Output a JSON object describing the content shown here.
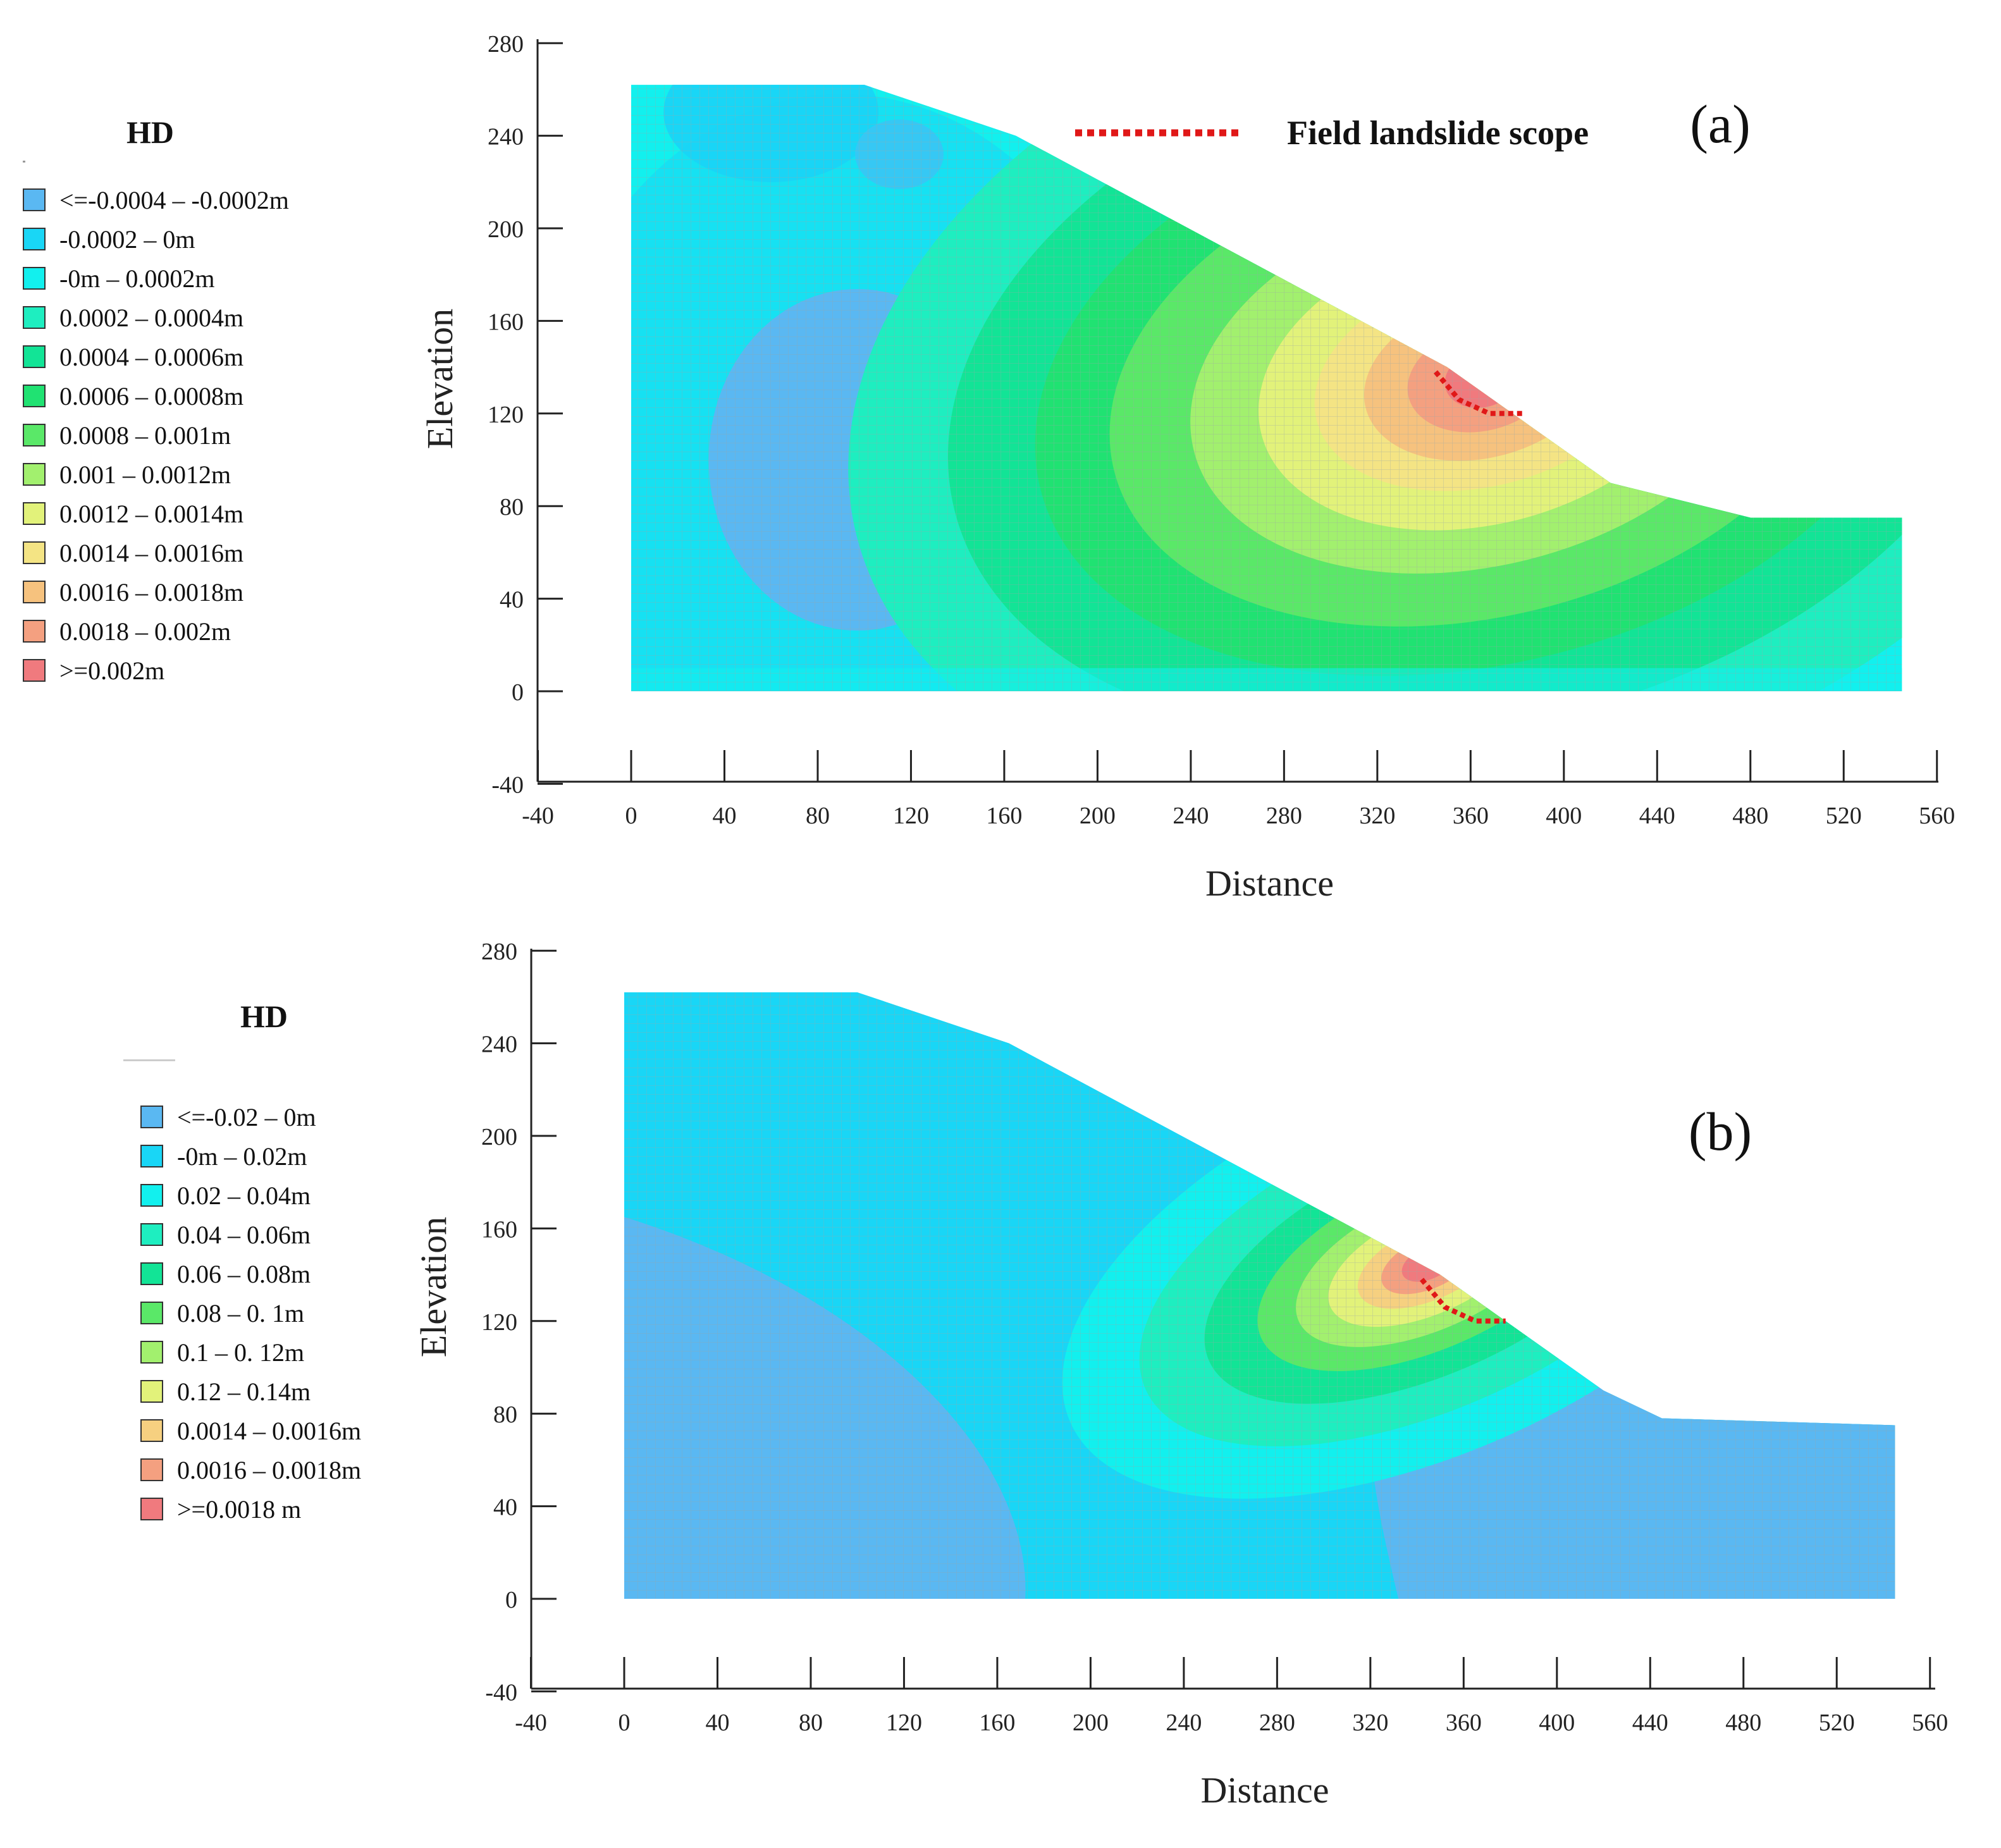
{
  "chart_data": [
    {
      "type": "heatmap",
      "panel_label": "(a)",
      "legend_title": "HD",
      "legend": [
        {
          "label": "<=-0.0004 – -0.0002m",
          "color": "#5ab8f2"
        },
        {
          "label": "-0.0002 – 0m",
          "color": "#19d6f6"
        },
        {
          "label": "-0m – 0.0002m",
          "color": "#12f0ee"
        },
        {
          "label": "0.0002 – 0.0004m",
          "color": "#1eeec0"
        },
        {
          "label": "0.0004 – 0.0006m",
          "color": "#12e496"
        },
        {
          "label": "0.0006 – 0.0008m",
          "color": "#20e272"
        },
        {
          "label": "0.0008 – 0.001m",
          "color": "#5ae868"
        },
        {
          "label": "0.001 – 0.0012m",
          "color": "#a2f06e"
        },
        {
          "label": "0.0012 – 0.0014m",
          "color": "#e2f27a"
        },
        {
          "label": "0.0014 – 0.0016m",
          "color": "#f4e484"
        },
        {
          "label": "0.0016 – 0.0018m",
          "color": "#f6c27e"
        },
        {
          "label": "0.0018 – 0.002m",
          "color": "#f4a080"
        },
        {
          "label": ">=0.002m",
          "color": "#f07a7e"
        }
      ],
      "annotation": "Field landslide scope",
      "xlabel": "Distance",
      "ylabel": "Elevation",
      "xlim": [
        -40,
        560
      ],
      "ylim": [
        -40,
        280
      ],
      "xticks": [
        -40,
        0,
        40,
        80,
        120,
        160,
        200,
        240,
        280,
        320,
        360,
        400,
        440,
        480,
        520,
        560
      ],
      "yticks": [
        -40,
        0,
        40,
        80,
        120,
        160,
        200,
        240,
        280
      ],
      "slope_profile": [
        [
          0,
          0
        ],
        [
          0,
          262
        ],
        [
          100,
          262
        ],
        [
          165,
          240
        ],
        [
          350,
          140
        ],
        [
          420,
          90
        ],
        [
          480,
          75
        ],
        [
          545,
          75
        ],
        [
          545,
          0
        ]
      ],
      "landslide_scope": [
        [
          345,
          138
        ],
        [
          355,
          126
        ],
        [
          368,
          120
        ],
        [
          383,
          120
        ]
      ]
    },
    {
      "type": "heatmap",
      "panel_label": "(b)",
      "legend_title": "HD",
      "legend": [
        {
          "label": "<=-0.02 – 0m",
          "color": "#5ab8f2"
        },
        {
          "label": "-0m – 0.02m",
          "color": "#19d6f6"
        },
        {
          "label": "0.02 – 0.04m",
          "color": "#12f0ee"
        },
        {
          "label": "0.04 – 0.06m",
          "color": "#1eeec0"
        },
        {
          "label": "0.06 – 0.08m",
          "color": "#12e496"
        },
        {
          "label": "0.08 – 0. 1m",
          "color": "#5ae868"
        },
        {
          "label": "0.1 – 0. 12m",
          "color": "#a2f06e"
        },
        {
          "label": "0.12 – 0.14m",
          "color": "#e2f27a"
        },
        {
          "label": "0.0014 – 0.0016m",
          "color": "#f6d080"
        },
        {
          "label": "0.0016 – 0.0018m",
          "color": "#f4a080"
        },
        {
          "label": ">=0.0018 m",
          "color": "#f07a7e"
        }
      ],
      "xlabel": "Distance",
      "ylabel": "Elevation",
      "xlim": [
        -40,
        560
      ],
      "ylim": [
        -40,
        280
      ],
      "xticks": [
        -40,
        0,
        40,
        80,
        120,
        160,
        200,
        240,
        280,
        320,
        360,
        400,
        440,
        480,
        520,
        560
      ],
      "yticks": [
        -40,
        0,
        40,
        80,
        120,
        160,
        200,
        240,
        280
      ],
      "slope_profile": [
        [
          0,
          0
        ],
        [
          0,
          262
        ],
        [
          100,
          262
        ],
        [
          165,
          240
        ],
        [
          350,
          140
        ],
        [
          420,
          90
        ],
        [
          445,
          78
        ],
        [
          545,
          75
        ],
        [
          545,
          0
        ]
      ],
      "landslide_scope": [
        [
          342,
          138
        ],
        [
          352,
          126
        ],
        [
          365,
          120
        ],
        [
          378,
          120
        ]
      ]
    }
  ]
}
